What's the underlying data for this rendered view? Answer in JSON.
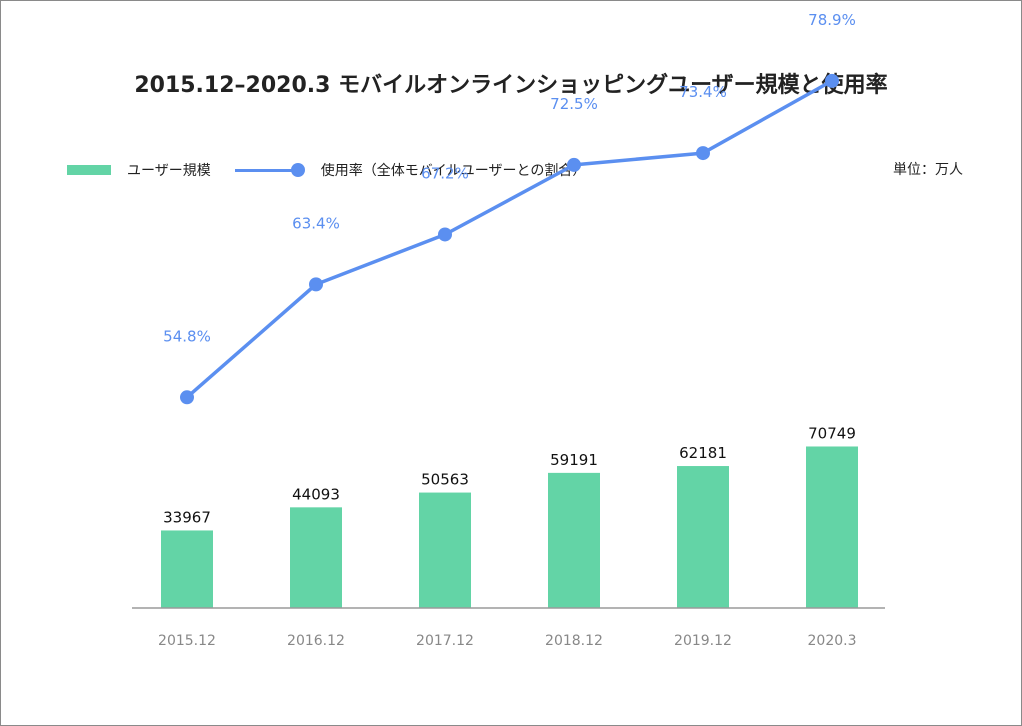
{
  "chart_data": {
    "type": "bar",
    "title": "2015.12–2020.3 モバイルオンラインショッピングユーザー規模と使用率",
    "unit_label": "単位：万人",
    "categories": [
      "2015.12",
      "2016.12",
      "2017.12",
      "2018.12",
      "2019.12",
      "2020.3"
    ],
    "series": [
      {
        "name": "ユーザー規模",
        "type": "bar",
        "values": [
          33967,
          44093,
          50563,
          59191,
          62181,
          70749
        ],
        "color": "#63d4a6"
      },
      {
        "name": "使用率（全体モバイルユーザーとの割合）",
        "type": "line",
        "values": [
          54.8,
          63.4,
          67.2,
          72.5,
          73.4,
          78.9
        ],
        "labels": [
          "54.8%",
          "63.4%",
          "67.2%",
          "72.5%",
          "73.4%",
          "78.9%"
        ],
        "color": "#5b8ff0"
      }
    ],
    "grid": false,
    "legend_position": "top"
  }
}
